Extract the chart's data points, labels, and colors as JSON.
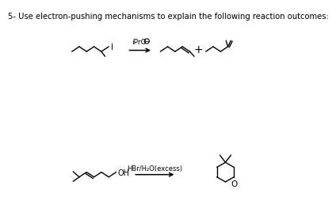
{
  "title": "5- Use electron-pushing mechanisms to explain the following reaction outcomes:",
  "title_fontsize": 7.2,
  "background_color": "#ffffff",
  "reaction1_reagent": "iPrO",
  "reaction2_reagent": "HBr/H₂O(excess)",
  "plus_sign": "+"
}
